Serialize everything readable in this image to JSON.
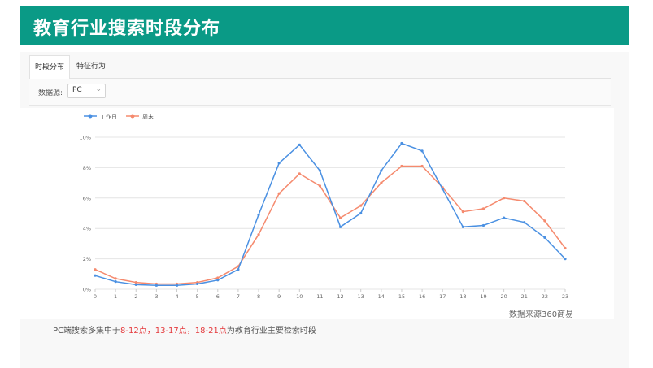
{
  "page": {
    "title": "教育行业搜索时段分布"
  },
  "tabs": [
    {
      "label": "时段分布"
    },
    {
      "label": "特征行为"
    }
  ],
  "filter": {
    "label": "数据源:",
    "value": "PC"
  },
  "colors": {
    "banner": "#0a9a86",
    "workday": "#4a90e2",
    "weekend": "#f58a6e",
    "highlight": "#e4393c"
  },
  "chart_data": {
    "type": "line",
    "x": [
      "0",
      "1",
      "2",
      "3",
      "4",
      "5",
      "6",
      "7",
      "8",
      "9",
      "10",
      "11",
      "12",
      "13",
      "14",
      "15",
      "16",
      "17",
      "18",
      "19",
      "20",
      "21",
      "22",
      "23"
    ],
    "series": [
      {
        "name": "工作日",
        "values": [
          0.9,
          0.5,
          0.3,
          0.25,
          0.25,
          0.35,
          0.6,
          1.3,
          4.9,
          8.3,
          9.5,
          7.8,
          4.1,
          5.0,
          7.8,
          9.6,
          9.1,
          6.6,
          4.1,
          4.2,
          4.7,
          4.4,
          3.4,
          2.0
        ]
      },
      {
        "name": "周末",
        "values": [
          1.3,
          0.7,
          0.45,
          0.35,
          0.35,
          0.45,
          0.75,
          1.5,
          3.6,
          6.3,
          7.6,
          6.8,
          4.7,
          5.5,
          7.0,
          8.1,
          8.1,
          6.7,
          5.1,
          5.3,
          6.0,
          5.8,
          4.5,
          2.7
        ]
      }
    ],
    "yticks": [
      "0%",
      "2%",
      "4%",
      "6%",
      "8%",
      "10%"
    ],
    "ylim": [
      0,
      10
    ],
    "grid": true,
    "legend": "top-left"
  },
  "source": "数据来源360商易",
  "note": {
    "prefix": "PC端搜索多集中于",
    "hl1": "8-12点，",
    "hl2": "13-17点，",
    "hl3": "18-21点",
    "suffix": "为教育行业主要检索时段"
  }
}
